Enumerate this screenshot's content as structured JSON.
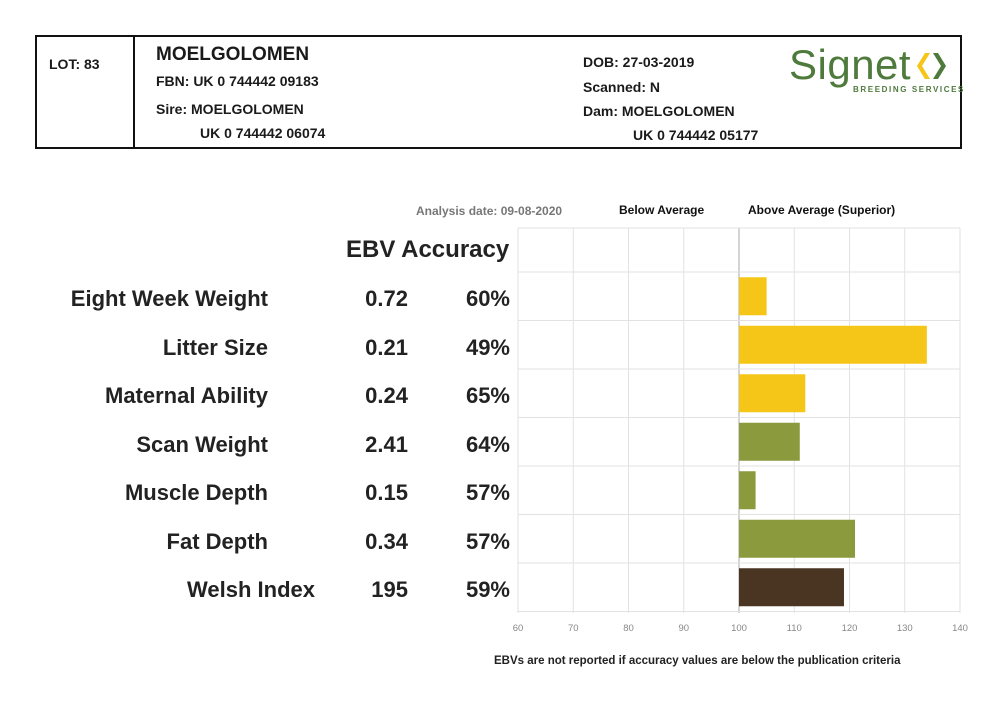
{
  "header": {
    "lot": "LOT: 83",
    "name": "MOELGOLOMEN",
    "fbn": "FBN: UK 0 744442 09183",
    "sire": "Sire: MOELGOLOMEN",
    "sire_fbn": "UK 0 744442 06074",
    "dob": "DOB: 27-03-2019",
    "scanned": "Scanned: N",
    "dam": "Dam: MOELGOLOMEN",
    "dam_fbn": "UK 0 744442 05177",
    "logo_word": "Signet",
    "logo_sub": "BREEDING SERVICES",
    "logo_color": "#4e7a3c"
  },
  "columns": {
    "analysis_date": "Analysis date: 09-08-2020",
    "below": "Below Average",
    "above": "Above Average (Superior)",
    "ebv_accuracy": "EBV Accuracy"
  },
  "chart_data": {
    "type": "bar",
    "orientation": "horizontal",
    "categories": [
      "Eight Week Weight",
      "Litter Size",
      "Maternal Ability",
      "Scan Weight",
      "Muscle Depth",
      "Fat Depth",
      "Welsh Index"
    ],
    "ebv": [
      "0.72",
      "0.21",
      "0.24",
      "2.41",
      "0.15",
      "0.34",
      "195"
    ],
    "accuracy": [
      "60%",
      "49%",
      "65%",
      "64%",
      "57%",
      "57%",
      "59%"
    ],
    "values": [
      105,
      134,
      112,
      111,
      103,
      121,
      119
    ],
    "baseline": 100,
    "xlim": [
      60,
      140
    ],
    "xticks": [
      "60",
      "70",
      "80",
      "90",
      "100",
      "110",
      "120",
      "130",
      "140"
    ],
    "bar_colors": [
      "#f5c518",
      "#f5c518",
      "#f5c518",
      "#8a9a3c",
      "#8a9a3c",
      "#8a9a3c",
      "#4a3523"
    ],
    "grid": true
  },
  "footnote": "EBVs are not reported if accuracy values are below the publication criteria"
}
